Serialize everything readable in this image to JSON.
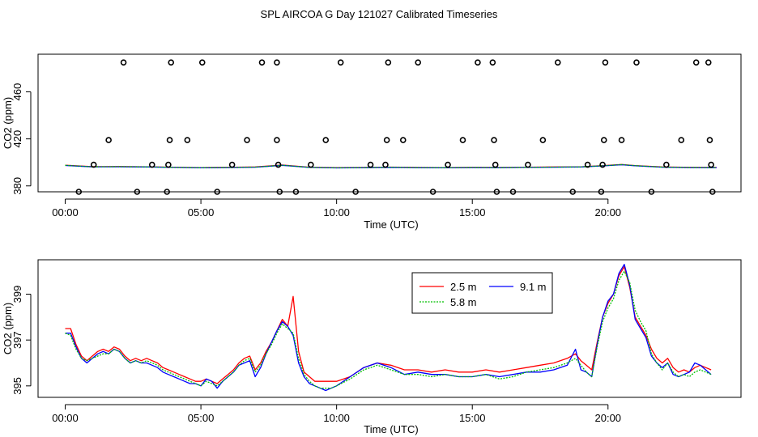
{
  "title": "SPL AIRCOA G  Day 121027  Calibrated Timeseries",
  "chart_data": [
    {
      "type": "scatter",
      "xlabel": "Time (UTC)",
      "ylabel": "CO2 (ppm)",
      "xlim": [
        -1.0,
        24.9
      ],
      "ylim": [
        375,
        492
      ],
      "xticks": [
        0,
        5,
        10,
        15,
        20
      ],
      "xtick_labels": [
        "00:00",
        "05:00",
        "10:00",
        "15:00",
        "20:00"
      ],
      "yticks": [
        380,
        420,
        460
      ],
      "ytick_labels": [
        "380",
        "420",
        "460"
      ],
      "points": [
        {
          "x": 0.5,
          "y": 375
        },
        {
          "x": 1.05,
          "y": 398
        },
        {
          "x": 1.6,
          "y": 419
        },
        {
          "x": 2.15,
          "y": 485
        },
        {
          "x": 2.65,
          "y": 375
        },
        {
          "x": 3.2,
          "y": 398
        },
        {
          "x": 3.75,
          "y": 375
        },
        {
          "x": 3.8,
          "y": 398
        },
        {
          "x": 3.85,
          "y": 419
        },
        {
          "x": 3.9,
          "y": 485
        },
        {
          "x": 4.5,
          "y": 419
        },
        {
          "x": 5.05,
          "y": 485
        },
        {
          "x": 5.6,
          "y": 375
        },
        {
          "x": 6.15,
          "y": 398
        },
        {
          "x": 6.7,
          "y": 419
        },
        {
          "x": 7.25,
          "y": 485
        },
        {
          "x": 7.8,
          "y": 485
        },
        {
          "x": 7.8,
          "y": 419
        },
        {
          "x": 7.85,
          "y": 398
        },
        {
          "x": 7.9,
          "y": 375
        },
        {
          "x": 8.5,
          "y": 375
        },
        {
          "x": 9.05,
          "y": 398
        },
        {
          "x": 9.6,
          "y": 419
        },
        {
          "x": 10.15,
          "y": 485
        },
        {
          "x": 10.7,
          "y": 375
        },
        {
          "x": 11.25,
          "y": 398
        },
        {
          "x": 11.8,
          "y": 398
        },
        {
          "x": 11.85,
          "y": 419
        },
        {
          "x": 11.9,
          "y": 485
        },
        {
          "x": 12.45,
          "y": 419
        },
        {
          "x": 13.0,
          "y": 485
        },
        {
          "x": 13.55,
          "y": 375
        },
        {
          "x": 14.1,
          "y": 398
        },
        {
          "x": 14.65,
          "y": 419
        },
        {
          "x": 15.2,
          "y": 485
        },
        {
          "x": 15.75,
          "y": 485
        },
        {
          "x": 15.8,
          "y": 419
        },
        {
          "x": 15.85,
          "y": 398
        },
        {
          "x": 15.9,
          "y": 375
        },
        {
          "x": 16.5,
          "y": 375
        },
        {
          "x": 17.05,
          "y": 398
        },
        {
          "x": 17.6,
          "y": 419
        },
        {
          "x": 18.15,
          "y": 485
        },
        {
          "x": 18.7,
          "y": 375
        },
        {
          "x": 19.25,
          "y": 398
        },
        {
          "x": 19.75,
          "y": 375
        },
        {
          "x": 19.8,
          "y": 398
        },
        {
          "x": 19.85,
          "y": 419
        },
        {
          "x": 19.9,
          "y": 485
        },
        {
          "x": 20.5,
          "y": 419
        },
        {
          "x": 21.05,
          "y": 485
        },
        {
          "x": 21.6,
          "y": 375
        },
        {
          "x": 22.15,
          "y": 398
        },
        {
          "x": 22.7,
          "y": 419
        },
        {
          "x": 23.25,
          "y": 485
        },
        {
          "x": 23.7,
          "y": 485
        },
        {
          "x": 23.75,
          "y": 419
        },
        {
          "x": 23.8,
          "y": 398
        },
        {
          "x": 23.85,
          "y": 375
        }
      ],
      "series": [
        {
          "name": "2.5 m",
          "color": "#ff0000",
          "x": [
            0,
            1,
            2,
            3,
            4,
            5,
            6,
            7,
            8,
            9,
            10,
            11,
            12,
            13,
            14,
            15,
            16,
            17,
            18,
            19,
            20,
            20.5,
            21,
            22,
            23,
            24
          ],
          "values": [
            397.6,
            396.4,
            396.5,
            396.3,
            395.9,
            395.6,
            395.8,
            396.1,
            397.8,
            395.9,
            395.5,
            395.7,
            396.0,
            395.7,
            395.6,
            395.8,
            395.7,
            395.9,
            396.1,
            396.3,
            397.5,
            398.2,
            397.3,
            396.1,
            395.8,
            395.7
          ]
        },
        {
          "name": "5.8 m",
          "color": "#00c000",
          "x": [
            0,
            1,
            2,
            3,
            4,
            5,
            6,
            7,
            8,
            9,
            10,
            11,
            12,
            13,
            14,
            15,
            16,
            17,
            18,
            19,
            20,
            20.5,
            21,
            22,
            23,
            24
          ],
          "values": [
            397.5,
            396.3,
            396.4,
            396.2,
            395.8,
            395.5,
            395.7,
            396.0,
            397.6,
            395.8,
            395.4,
            395.6,
            395.9,
            395.6,
            395.5,
            395.7,
            395.6,
            395.8,
            396.0,
            396.2,
            397.4,
            398.1,
            397.2,
            396.0,
            395.7,
            395.6
          ]
        },
        {
          "name": "9.1 m",
          "color": "#0000ff",
          "x": [
            0,
            1,
            2,
            3,
            4,
            5,
            6,
            7,
            8,
            9,
            10,
            11,
            12,
            13,
            14,
            15,
            16,
            17,
            18,
            19,
            20,
            20.5,
            21,
            22,
            23,
            24
          ],
          "values": [
            397.4,
            396.2,
            396.3,
            396.1,
            395.7,
            395.4,
            395.6,
            395.9,
            397.5,
            395.7,
            395.3,
            395.5,
            395.8,
            395.5,
            395.4,
            395.6,
            395.5,
            395.7,
            395.9,
            396.1,
            397.3,
            398.0,
            397.1,
            395.9,
            395.6,
            395.5
          ]
        }
      ]
    },
    {
      "type": "line",
      "xlabel": "Time (UTC)",
      "ylabel": "CO2 (ppm)",
      "xlim": [
        -1.0,
        24.9
      ],
      "ylim": [
        394.5,
        400.5
      ],
      "xticks": [
        0,
        5,
        10,
        15,
        20
      ],
      "xtick_labels": [
        "00:00",
        "05:00",
        "10:00",
        "15:00",
        "20:00"
      ],
      "yticks": [
        395,
        397,
        399
      ],
      "ytick_labels": [
        "395",
        "397",
        "399"
      ],
      "legend": "top-center",
      "series": [
        {
          "name": "2.5 m",
          "color": "#ff0000",
          "x": [
            0,
            0.2,
            0.4,
            0.6,
            0.8,
            1.0,
            1.2,
            1.4,
            1.6,
            1.8,
            2.0,
            2.2,
            2.4,
            2.6,
            2.8,
            3.0,
            3.2,
            3.4,
            3.6,
            3.8,
            4.0,
            4.2,
            4.4,
            4.6,
            4.8,
            5.0,
            5.2,
            5.4,
            5.6,
            5.8,
            6.0,
            6.2,
            6.4,
            6.6,
            6.8,
            7.0,
            7.2,
            7.4,
            7.6,
            7.8,
            8.0,
            8.2,
            8.4,
            8.6,
            8.8,
            9.0,
            9.2,
            9.4,
            9.6,
            9.8,
            10.0,
            10.5,
            11.0,
            11.5,
            12.0,
            12.5,
            13.0,
            13.5,
            14.0,
            14.5,
            15.0,
            15.5,
            16.0,
            16.5,
            17.0,
            17.5,
            18.0,
            18.5,
            18.8,
            19.0,
            19.2,
            19.4,
            19.6,
            19.8,
            20.0,
            20.2,
            20.4,
            20.6,
            20.8,
            21.0,
            21.2,
            21.4,
            21.6,
            21.8,
            22.0,
            22.2,
            22.4,
            22.6,
            22.8,
            23.0,
            23.2,
            23.4,
            23.6,
            23.8
          ],
          "values": [
            397.5,
            397.5,
            396.8,
            396.3,
            396.1,
            396.3,
            396.5,
            396.6,
            396.5,
            396.7,
            396.6,
            396.3,
            396.1,
            396.2,
            396.1,
            396.2,
            396.1,
            396.0,
            395.8,
            395.7,
            395.6,
            395.5,
            395.4,
            395.3,
            395.2,
            395.2,
            395.3,
            395.2,
            395.1,
            395.3,
            395.5,
            395.7,
            396.0,
            396.2,
            396.3,
            395.7,
            396.0,
            396.5,
            396.9,
            397.4,
            397.9,
            397.6,
            398.9,
            396.5,
            395.6,
            395.4,
            395.2,
            395.2,
            395.2,
            395.2,
            395.2,
            395.4,
            395.8,
            396.0,
            395.9,
            395.7,
            395.7,
            395.6,
            395.7,
            395.6,
            395.6,
            395.7,
            395.6,
            395.7,
            395.8,
            395.9,
            396.0,
            396.2,
            396.4,
            396.1,
            395.9,
            395.7,
            396.9,
            398.0,
            398.6,
            399.0,
            399.8,
            400.2,
            399.3,
            398.0,
            397.6,
            397.2,
            396.6,
            396.2,
            396.0,
            396.2,
            395.8,
            395.6,
            395.7,
            395.6,
            395.8,
            395.9,
            395.8,
            395.7
          ]
        },
        {
          "name": "5.8 m",
          "color": "#00c000",
          "x": [
            0,
            0.2,
            0.4,
            0.6,
            0.8,
            1.0,
            1.2,
            1.4,
            1.6,
            1.8,
            2.0,
            2.2,
            2.4,
            2.6,
            2.8,
            3.0,
            3.2,
            3.4,
            3.6,
            3.8,
            4.0,
            4.2,
            4.4,
            4.6,
            4.8,
            5.0,
            5.2,
            5.4,
            5.6,
            5.8,
            6.0,
            6.2,
            6.4,
            6.6,
            6.8,
            7.0,
            7.2,
            7.4,
            7.6,
            7.8,
            8.0,
            8.2,
            8.4,
            8.6,
            8.8,
            9.0,
            9.2,
            9.4,
            9.6,
            9.8,
            10.0,
            10.5,
            11.0,
            11.5,
            12.0,
            12.5,
            13.0,
            13.5,
            14.0,
            14.5,
            15.0,
            15.5,
            16.0,
            16.5,
            17.0,
            17.5,
            18.0,
            18.5,
            18.8,
            19.0,
            19.2,
            19.4,
            19.6,
            19.8,
            20.0,
            20.2,
            20.4,
            20.6,
            20.8,
            21.0,
            21.2,
            21.4,
            21.6,
            21.8,
            22.0,
            22.2,
            22.4,
            22.6,
            22.8,
            23.0,
            23.2,
            23.4,
            23.6,
            23.8
          ],
          "values": [
            397.3,
            397.2,
            396.6,
            396.2,
            396.1,
            396.2,
            396.3,
            396.4,
            396.4,
            396.6,
            396.5,
            396.2,
            396.0,
            396.1,
            396.0,
            396.1,
            396.0,
            395.9,
            395.7,
            395.6,
            395.5,
            395.4,
            395.3,
            395.2,
            395.1,
            395.0,
            395.2,
            395.1,
            395.0,
            395.2,
            395.4,
            395.6,
            395.9,
            396.1,
            396.2,
            395.6,
            395.9,
            396.4,
            396.8,
            397.3,
            397.7,
            397.5,
            397.3,
            396.2,
            395.5,
            395.2,
            395.0,
            394.9,
            394.9,
            394.9,
            395.0,
            395.3,
            395.7,
            395.9,
            395.7,
            395.5,
            395.5,
            395.4,
            395.5,
            395.4,
            395.4,
            395.5,
            395.3,
            395.4,
            395.6,
            395.7,
            395.8,
            396.0,
            396.2,
            395.9,
            395.6,
            395.4,
            396.7,
            397.8,
            398.4,
            398.8,
            399.6,
            400.0,
            399.5,
            398.3,
            397.8,
            397.4,
            396.4,
            396.0,
            395.7,
            396.0,
            395.6,
            395.4,
            395.5,
            395.4,
            395.6,
            395.7,
            395.6,
            395.5
          ]
        },
        {
          "name": "9.1 m",
          "color": "#0000ff",
          "x": [
            0,
            0.2,
            0.4,
            0.6,
            0.8,
            1.0,
            1.2,
            1.4,
            1.6,
            1.8,
            2.0,
            2.2,
            2.4,
            2.6,
            2.8,
            3.0,
            3.2,
            3.4,
            3.6,
            3.8,
            4.0,
            4.2,
            4.4,
            4.6,
            4.8,
            5.0,
            5.2,
            5.4,
            5.6,
            5.8,
            6.0,
            6.2,
            6.4,
            6.6,
            6.8,
            7.0,
            7.2,
            7.4,
            7.6,
            7.8,
            8.0,
            8.2,
            8.4,
            8.6,
            8.8,
            9.0,
            9.2,
            9.4,
            9.6,
            9.8,
            10.0,
            10.5,
            11.0,
            11.5,
            12.0,
            12.5,
            13.0,
            13.5,
            14.0,
            14.5,
            15.0,
            15.5,
            16.0,
            16.5,
            17.0,
            17.5,
            18.0,
            18.5,
            18.8,
            19.0,
            19.2,
            19.4,
            19.6,
            19.8,
            20.0,
            20.2,
            20.4,
            20.6,
            20.8,
            21.0,
            21.2,
            21.4,
            21.6,
            21.8,
            22.0,
            22.2,
            22.4,
            22.6,
            22.8,
            23.0,
            23.2,
            23.4,
            23.6,
            23.8
          ],
          "values": [
            397.3,
            397.3,
            396.7,
            396.2,
            396.0,
            396.2,
            396.4,
            396.5,
            396.4,
            396.6,
            396.5,
            396.2,
            396.0,
            396.1,
            396.0,
            396.0,
            395.9,
            395.8,
            395.6,
            395.5,
            395.4,
            395.3,
            395.2,
            395.1,
            395.1,
            395.0,
            395.3,
            395.2,
            394.9,
            395.2,
            395.4,
            395.6,
            395.9,
            396.0,
            396.1,
            395.4,
            395.8,
            396.4,
            396.9,
            397.4,
            397.8,
            397.6,
            397.2,
            396.0,
            395.4,
            395.1,
            395.0,
            394.9,
            394.8,
            394.9,
            395.0,
            395.4,
            395.8,
            396.0,
            395.8,
            395.5,
            395.6,
            395.5,
            395.5,
            395.4,
            395.4,
            395.5,
            395.4,
            395.5,
            395.6,
            395.6,
            395.7,
            395.9,
            396.6,
            395.7,
            395.6,
            395.4,
            396.8,
            398.0,
            398.7,
            399.0,
            399.9,
            400.3,
            399.4,
            397.9,
            397.5,
            397.1,
            396.3,
            396.0,
            395.8,
            396.0,
            395.5,
            395.4,
            395.5,
            395.6,
            396.0,
            395.9,
            395.7,
            395.5
          ]
        }
      ]
    }
  ]
}
